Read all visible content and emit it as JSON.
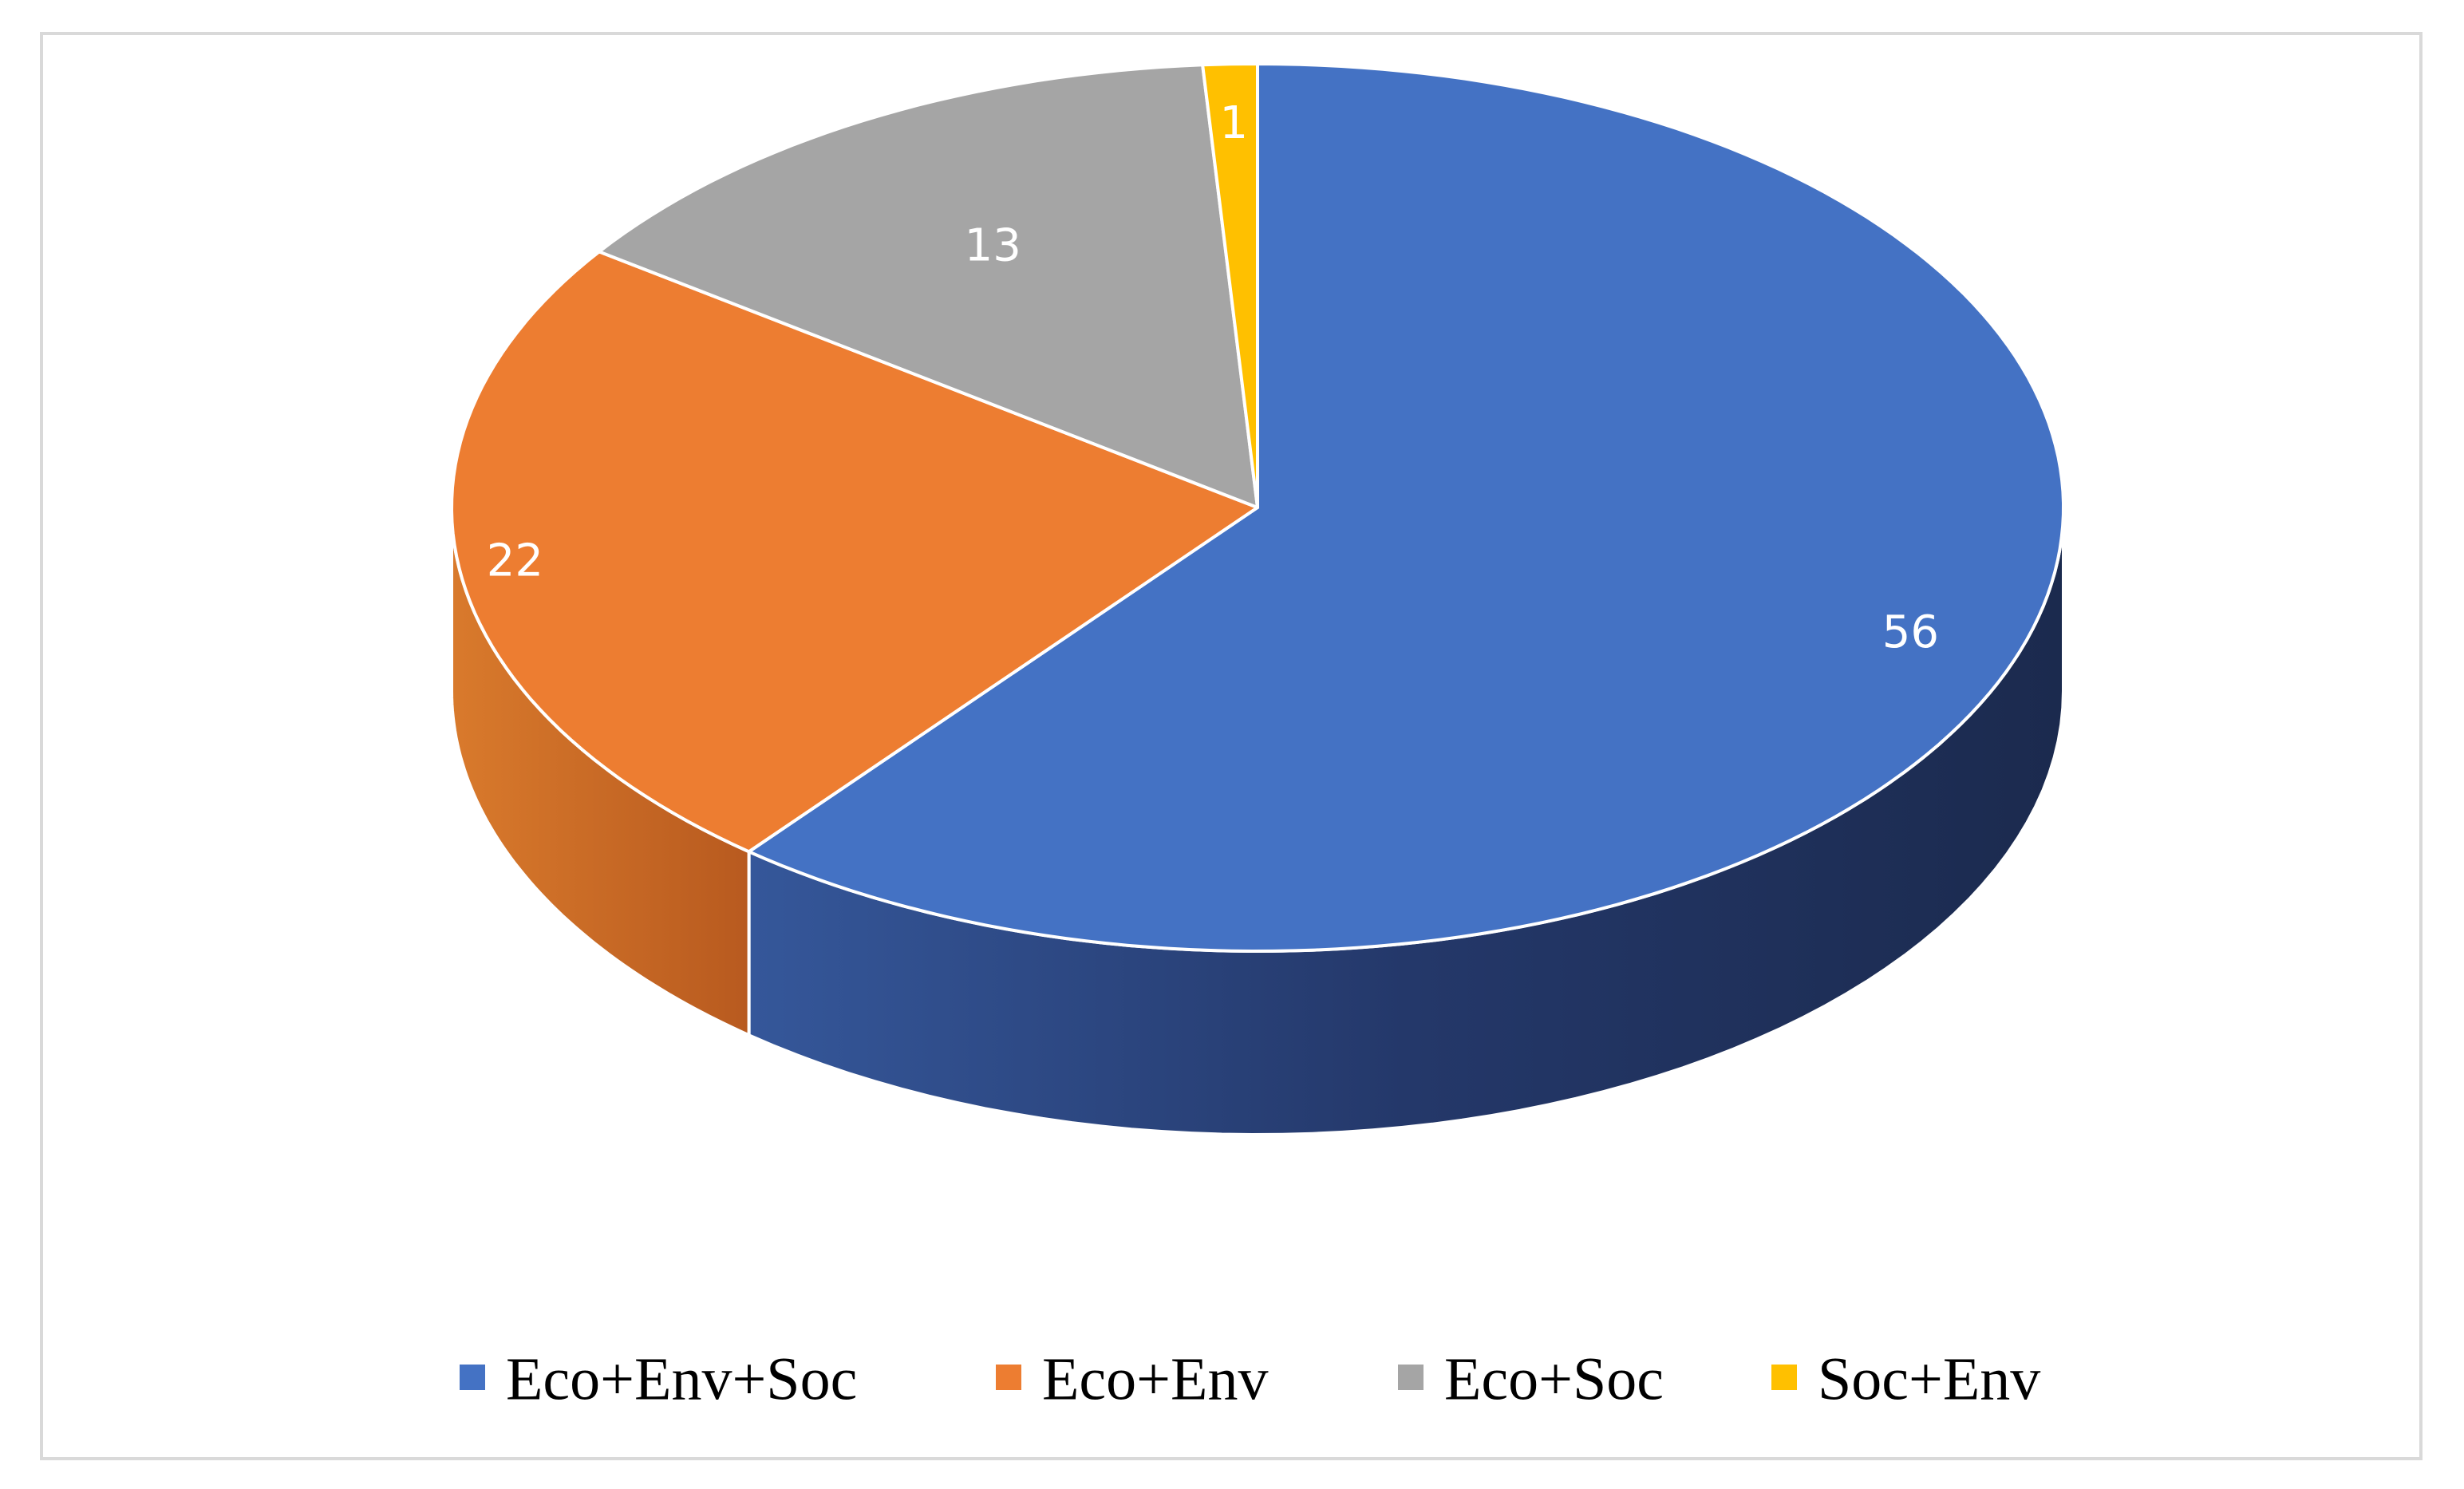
{
  "chart_data": {
    "type": "pie",
    "style": "3d",
    "title": "",
    "categories": [
      "Eco+Env+Soc",
      "Eco+Env",
      "Eco+Soc",
      "Soc+Env"
    ],
    "values": [
      56,
      22,
      13,
      1
    ],
    "colors": [
      "#4472C4",
      "#ED7D31",
      "#A5A5A5",
      "#FFC000"
    ],
    "legend": {
      "position": "bottom",
      "entries": [
        "Eco+Env+Soc",
        "Eco+Env",
        "Eco+Soc",
        "Soc+Env"
      ]
    },
    "data_labels": [
      "56",
      "22",
      "13",
      "1"
    ]
  }
}
